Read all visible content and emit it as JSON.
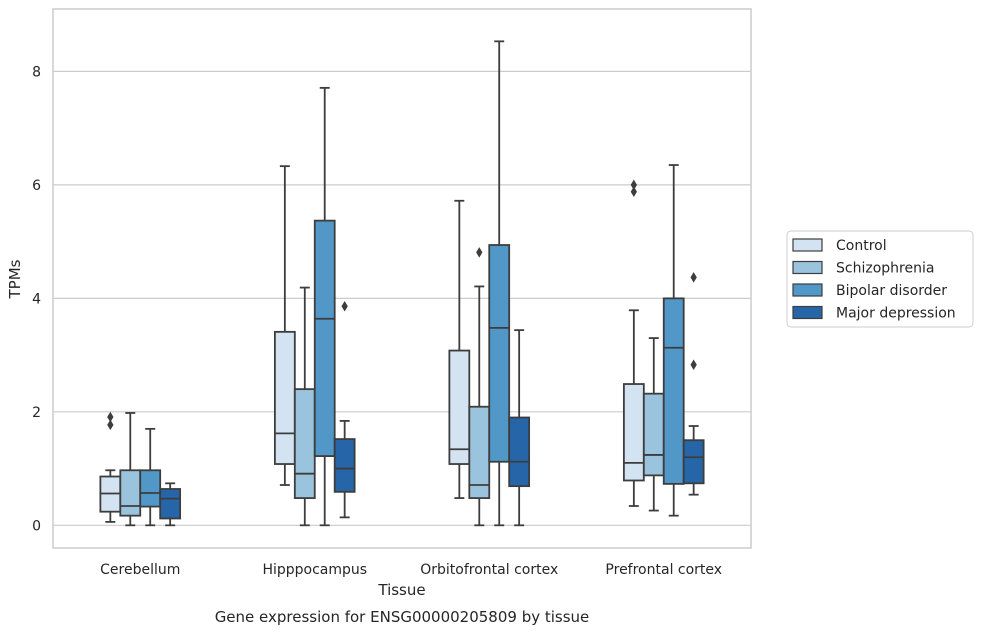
{
  "caption": "Gene expression for ENSG00000205809 by tissue",
  "colors": {
    "grid": "#cccccc",
    "frame": "#cccccc",
    "box_edge": "#3d3d3d",
    "series": [
      "#d3e3f2",
      "#9ac3dd",
      "#5197c7",
      "#2565a8"
    ]
  },
  "chart_data": {
    "type": "box",
    "xlabel": "Tissue",
    "ylabel": "TPMs",
    "ylim": [
      -0.4,
      9.1
    ],
    "yticks": [
      0,
      2,
      4,
      6,
      8
    ],
    "grid": "horizontal",
    "legend_position": "right",
    "categories": [
      "Cerebellum",
      "Hipppocampus",
      "Orbitofrontal cortex",
      "Prefrontal cortex"
    ],
    "series": [
      {
        "name": "Control",
        "color": "#d3e3f2",
        "boxes": [
          {
            "whislo": 0.06,
            "q1": 0.24,
            "med": 0.56,
            "q3": 0.86,
            "whishi": 0.97,
            "fliers": [
              1.77,
              1.91
            ]
          },
          {
            "whislo": 0.71,
            "q1": 1.08,
            "med": 1.62,
            "q3": 3.41,
            "whishi": 6.33,
            "fliers": []
          },
          {
            "whislo": 0.48,
            "q1": 1.08,
            "med": 1.34,
            "q3": 3.08,
            "whishi": 5.72,
            "fliers": []
          },
          {
            "whislo": 0.34,
            "q1": 0.79,
            "med": 1.1,
            "q3": 2.49,
            "whishi": 3.79,
            "fliers": [
              5.88,
              6.0
            ]
          }
        ]
      },
      {
        "name": "Schizophrenia",
        "color": "#9ac3dd",
        "boxes": [
          {
            "whislo": 0.0,
            "q1": 0.17,
            "med": 0.34,
            "q3": 0.97,
            "whishi": 1.98,
            "fliers": []
          },
          {
            "whislo": 0.0,
            "q1": 0.48,
            "med": 0.91,
            "q3": 2.4,
            "whishi": 4.19,
            "fliers": []
          },
          {
            "whislo": 0.0,
            "q1": 0.48,
            "med": 0.71,
            "q3": 2.09,
            "whishi": 4.21,
            "fliers": [
              4.81
            ]
          },
          {
            "whislo": 0.26,
            "q1": 0.88,
            "med": 1.24,
            "q3": 2.32,
            "whishi": 3.3,
            "fliers": []
          }
        ]
      },
      {
        "name": "Bipolar disorder",
        "color": "#5197c7",
        "boxes": [
          {
            "whislo": 0.0,
            "q1": 0.33,
            "med": 0.57,
            "q3": 0.97,
            "whishi": 1.7,
            "fliers": []
          },
          {
            "whislo": 0.0,
            "q1": 1.22,
            "med": 3.64,
            "q3": 5.37,
            "whishi": 7.71,
            "fliers": []
          },
          {
            "whislo": 0.0,
            "q1": 1.12,
            "med": 3.48,
            "q3": 4.94,
            "whishi": 8.53,
            "fliers": []
          },
          {
            "whislo": 0.17,
            "q1": 0.73,
            "med": 3.13,
            "q3": 4.0,
            "whishi": 6.35,
            "fliers": []
          }
        ]
      },
      {
        "name": "Major depression",
        "color": "#2565a8",
        "boxes": [
          {
            "whislo": 0.0,
            "q1": 0.12,
            "med": 0.47,
            "q3": 0.64,
            "whishi": 0.74,
            "fliers": []
          },
          {
            "whislo": 0.14,
            "q1": 0.59,
            "med": 1.0,
            "q3": 1.52,
            "whishi": 1.84,
            "fliers": [
              3.86
            ]
          },
          {
            "whislo": 0.0,
            "q1": 0.69,
            "med": 1.12,
            "q3": 1.9,
            "whishi": 3.44,
            "fliers": []
          },
          {
            "whislo": 0.54,
            "q1": 0.74,
            "med": 1.2,
            "q3": 1.5,
            "whishi": 1.75,
            "fliers": [
              2.83,
              4.37
            ]
          }
        ]
      }
    ]
  }
}
